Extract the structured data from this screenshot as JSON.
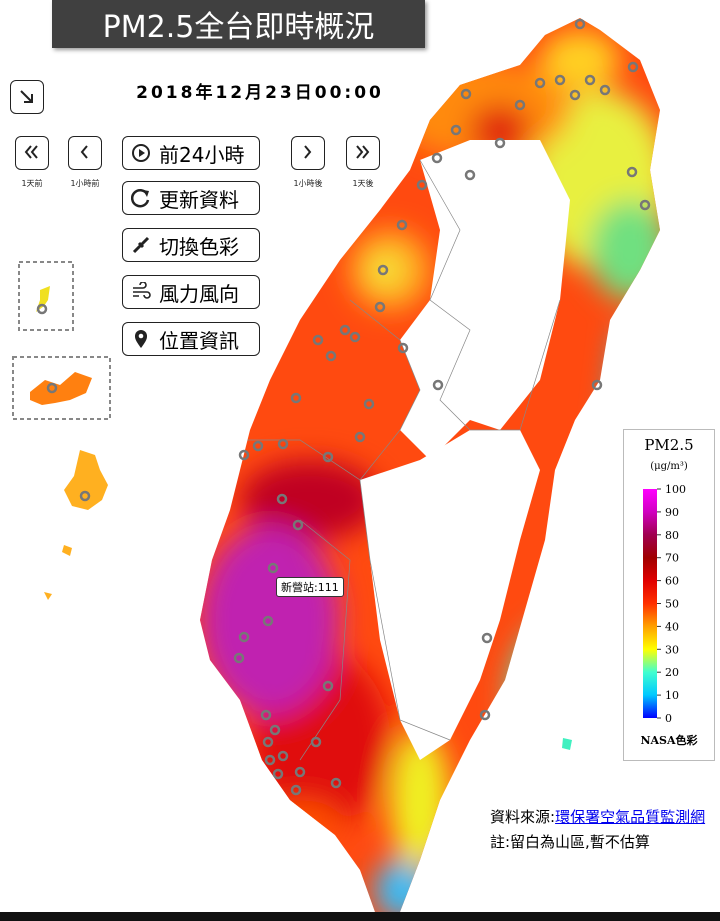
{
  "header": {
    "title": "PM2.5全台即時概況",
    "datetime": "2018年12月23日00:00"
  },
  "nav": [
    "1天前",
    "1小時前",
    "1小時後",
    "1天後"
  ],
  "menu": [
    "前24小時",
    "更新資料",
    "切換色彩",
    "風力風向",
    "位置資訊"
  ],
  "station_label": "新營站:111",
  "legend": {
    "title": "PM2.5",
    "unit": "(μg/m³)",
    "range": [
      0,
      100
    ],
    "ticks": [
      0,
      10,
      20,
      30,
      40,
      50,
      60,
      70,
      80,
      90,
      100
    ],
    "footer": "NASA色彩"
  },
  "source": {
    "prefix": "資料來源:",
    "link": "環保署空氣品質監測網"
  },
  "note": "註:留白為山區,暫不估算"
}
